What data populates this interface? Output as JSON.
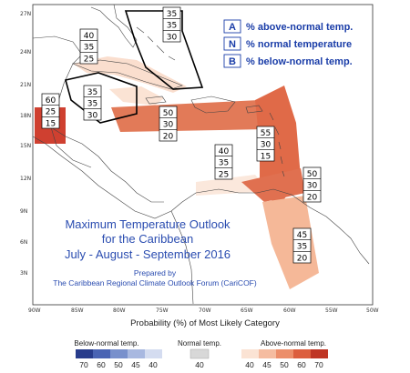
{
  "map": {
    "title": "Maximum Temperature Outlook",
    "subtitle": "for the Caribbean",
    "period": "July - August - September 2016",
    "prepared_by": "Prepared by",
    "prepared_org": "The Caribbean Regional Climate Outlook Forum (CariCOF)",
    "lat_labels": [
      "27N",
      "24N",
      "21N",
      "18N",
      "15N",
      "12N",
      "9N",
      "6N",
      "3N"
    ],
    "lon_labels": [
      "90W",
      "85W",
      "80W",
      "75W",
      "70W",
      "65W",
      "60W",
      "55W",
      "50W"
    ]
  },
  "key": {
    "items": [
      {
        "letter": "A",
        "text": "% above-normal temp."
      },
      {
        "letter": "N",
        "text": "% normal temperature"
      },
      {
        "letter": "B",
        "text": "% below-normal temp."
      }
    ]
  },
  "regions": [
    {
      "name": "bahamas",
      "values": [
        "35",
        "35",
        "30"
      ]
    },
    {
      "name": "cuba",
      "values": [
        "40",
        "35",
        "25"
      ]
    },
    {
      "name": "cayman-jamaica",
      "values": [
        "35",
        "35",
        "30"
      ]
    },
    {
      "name": "belize",
      "values": [
        "60",
        "25",
        "15"
      ]
    },
    {
      "name": "central-caribbean",
      "values": [
        "50",
        "30",
        "20"
      ]
    },
    {
      "name": "lesser-antilles",
      "values": [
        "55",
        "30",
        "15"
      ]
    },
    {
      "name": "abc-islands",
      "values": [
        "40",
        "35",
        "25"
      ]
    },
    {
      "name": "trinidad-tobago",
      "values": [
        "50",
        "30",
        "20"
      ]
    },
    {
      "name": "guianas",
      "values": [
        "45",
        "35",
        "20"
      ]
    }
  ],
  "colorbar": {
    "title": "Probability (%) of Most Likely Category",
    "below_label": "Below-normal temp.",
    "normal_label": "Normal temp.",
    "above_label": "Above-normal temp.",
    "below_ticks": [
      "70",
      "60",
      "50",
      "45",
      "40"
    ],
    "normal_ticks": [
      "40"
    ],
    "above_ticks": [
      "40",
      "45",
      "50",
      "60",
      "70"
    ],
    "colors": {
      "below": [
        "#283c8c",
        "#4a64b4",
        "#7890cc",
        "#a8b8e0",
        "#d4dcf0"
      ],
      "normal": "#d8d8d8",
      "above": [
        "#fbe3d4",
        "#f5bca0",
        "#ec8e6a",
        "#dc5e3e",
        "#bf3524"
      ]
    }
  }
}
